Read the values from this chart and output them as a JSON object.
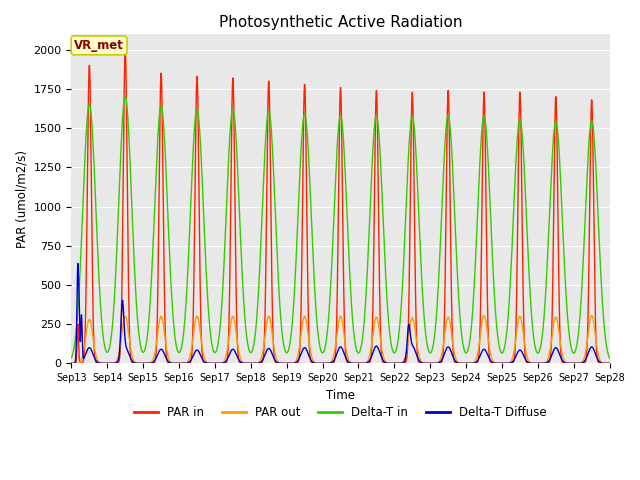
{
  "title": "Photosynthetic Active Radiation",
  "ylabel": "PAR (umol/m2/s)",
  "xlabel": "Time",
  "legend_label": "VR_met",
  "ylim": [
    0,
    2100
  ],
  "series_labels": [
    "PAR in",
    "PAR out",
    "Delta-T in",
    "Delta-T Diffuse"
  ],
  "series_colors": [
    "#ff2200",
    "#ff9900",
    "#33cc00",
    "#0000cc"
  ],
  "xtick_labels": [
    "Sep 13",
    "Sep 14",
    "Sep 15",
    "Sep 16",
    "Sep 17",
    "Sep 18",
    "Sep 19",
    "Sep 20",
    "Sep 21",
    "Sep 22",
    "Sep 23",
    "Sep 24",
    "Sep 25",
    "Sep 26",
    "Sep 27",
    "Sep 28"
  ],
  "background_color": "#e8e8e8",
  "fig_color": "#ffffff",
  "num_days": 15,
  "par_in_peaks": [
    1900,
    2000,
    1850,
    1830,
    1820,
    1800,
    1780,
    1760,
    1740,
    1730,
    1740,
    1730,
    1730,
    1700,
    1680
  ],
  "par_out_peaks": [
    280,
    300,
    300,
    300,
    300,
    300,
    300,
    300,
    295,
    290,
    295,
    305,
    300,
    295,
    305
  ],
  "delta_t_in_peaks": [
    1650,
    1700,
    1640,
    1620,
    1620,
    1610,
    1590,
    1580,
    1580,
    1575,
    1580,
    1575,
    1555,
    1540,
    1545
  ],
  "delta_t_diffuse_day1_spike": 630,
  "delta_t_diffuse_peaks": [
    100,
    100,
    90,
    85,
    90,
    95,
    100,
    105,
    110,
    110,
    105,
    90,
    85,
    100,
    105
  ]
}
